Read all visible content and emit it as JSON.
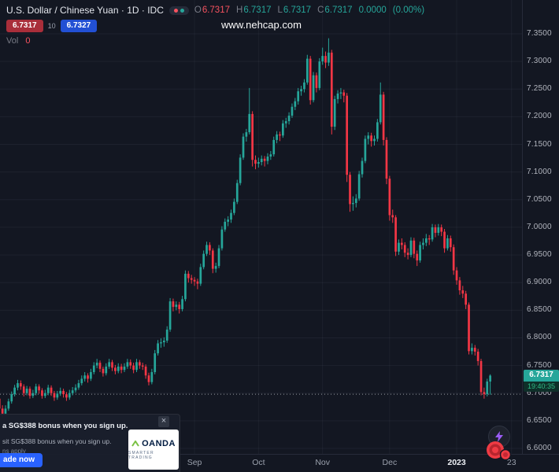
{
  "header": {
    "symbol_title": "U.S. Dollar / Chinese Yuan · 1D · IDC",
    "ohlc": {
      "o_label": "O",
      "o": "6.7317",
      "h_label": "H",
      "h": "6.7317",
      "l_label": "L",
      "l": "6.7317",
      "c_label": "C",
      "c": "6.7317",
      "change": "0.0000",
      "change_pct": "(0.00%)"
    },
    "bid": "6.7317",
    "spread": "10",
    "ask": "6.7327",
    "vol_label": "Vol",
    "vol_value": "0"
  },
  "watermark": "www.nehcap.com",
  "price_badge": {
    "price": "6.7317",
    "countdown": "19:40:35"
  },
  "ad": {
    "headline": "a SG$388 bonus when you sign up.",
    "subtext": "sit SG$388 bonus when you sign up.",
    "terms": "ns apply",
    "cta": "ade now",
    "close": "×",
    "logo": "OANDA",
    "logo_tagline": "SMARTER TRADING"
  },
  "colors": {
    "background": "#131722",
    "up_candle": "#26a69a",
    "down_candle": "#f23645",
    "sell_button": "#a92e3a",
    "buy_button": "#2250d4",
    "badge_green": "#26a69a",
    "ad_cta_blue": "#2962ff",
    "axis_text": "#b2b5be"
  },
  "chart_data": {
    "type": "candlestick",
    "symbol": "USDCNY",
    "timeframe": "1D",
    "title": "U.S. Dollar / Chinese Yuan",
    "ylim": [
      6.6,
      7.35
    ],
    "grid": true,
    "price_line": 6.698,
    "y_axis_labels": [
      "7.3500",
      "7.3000",
      "7.2500",
      "7.2000",
      "7.1500",
      "7.1000",
      "7.0500",
      "7.0000",
      "6.9500",
      "6.9000",
      "6.8500",
      "6.8000",
      "6.7500",
      "6.7000",
      "6.6500",
      "6.6000"
    ],
    "x_axis_labels": [
      {
        "label": "Sep",
        "index": 66
      },
      {
        "label": "Oct",
        "index": 87
      },
      {
        "label": "Nov",
        "index": 108
      },
      {
        "label": "Dec",
        "index": 130
      },
      {
        "label": "2023",
        "index": 152,
        "year": true
      },
      {
        "label": "23",
        "index": 170
      }
    ],
    "candles": [
      [
        6.705,
        6.712,
        6.695,
        6.7
      ],
      [
        6.7,
        6.705,
        6.684,
        6.69
      ],
      [
        6.69,
        6.694,
        6.666,
        6.672
      ],
      [
        6.672,
        6.678,
        6.656,
        6.663
      ],
      [
        6.663,
        6.678,
        6.659,
        6.672
      ],
      [
        6.672,
        6.69,
        6.668,
        6.685
      ],
      [
        6.685,
        6.703,
        6.681,
        6.698
      ],
      [
        6.698,
        6.715,
        6.694,
        6.71
      ],
      [
        6.71,
        6.724,
        6.705,
        6.718
      ],
      [
        6.718,
        6.723,
        6.706,
        6.712
      ],
      [
        6.712,
        6.716,
        6.694,
        6.7
      ],
      [
        6.7,
        6.713,
        6.696,
        6.708
      ],
      [
        6.708,
        6.712,
        6.69,
        6.695
      ],
      [
        6.695,
        6.706,
        6.691,
        6.7
      ],
      [
        6.7,
        6.717,
        6.696,
        6.712
      ],
      [
        6.712,
        6.716,
        6.699,
        6.705
      ],
      [
        6.705,
        6.709,
        6.69,
        6.695
      ],
      [
        6.695,
        6.706,
        6.691,
        6.7
      ],
      [
        6.7,
        6.715,
        6.696,
        6.71
      ],
      [
        6.71,
        6.714,
        6.695,
        6.7
      ],
      [
        6.7,
        6.704,
        6.686,
        6.692
      ],
      [
        6.692,
        6.704,
        6.688,
        6.699
      ],
      [
        6.699,
        6.71,
        6.695,
        6.704
      ],
      [
        6.704,
        6.708,
        6.692,
        6.698
      ],
      [
        6.698,
        6.702,
        6.686,
        6.692
      ],
      [
        6.692,
        6.706,
        6.688,
        6.7
      ],
      [
        6.7,
        6.711,
        6.696,
        6.705
      ],
      [
        6.705,
        6.716,
        6.701,
        6.71
      ],
      [
        6.71,
        6.724,
        6.706,
        6.718
      ],
      [
        6.718,
        6.732,
        6.714,
        6.726
      ],
      [
        6.726,
        6.738,
        6.721,
        6.732
      ],
      [
        6.732,
        6.736,
        6.719,
        6.726
      ],
      [
        6.726,
        6.744,
        6.722,
        6.738
      ],
      [
        6.738,
        6.756,
        6.734,
        6.75
      ],
      [
        6.75,
        6.762,
        6.745,
        6.755
      ],
      [
        6.755,
        6.759,
        6.738,
        6.744
      ],
      [
        6.744,
        6.748,
        6.73,
        6.736
      ],
      [
        6.736,
        6.754,
        6.732,
        6.748
      ],
      [
        6.748,
        6.762,
        6.744,
        6.756
      ],
      [
        6.756,
        6.76,
        6.74,
        6.746
      ],
      [
        6.746,
        6.751,
        6.734,
        6.74
      ],
      [
        6.74,
        6.754,
        6.736,
        6.748
      ],
      [
        6.748,
        6.753,
        6.736,
        6.742
      ],
      [
        6.742,
        6.754,
        6.738,
        6.748
      ],
      [
        6.748,
        6.762,
        6.744,
        6.756
      ],
      [
        6.756,
        6.761,
        6.744,
        6.75
      ],
      [
        6.75,
        6.755,
        6.736,
        6.742
      ],
      [
        6.742,
        6.762,
        6.738,
        6.756
      ],
      [
        6.756,
        6.76,
        6.744,
        6.75
      ],
      [
        6.75,
        6.755,
        6.742,
        6.748
      ],
      [
        6.748,
        6.752,
        6.726,
        6.732
      ],
      [
        6.732,
        6.737,
        6.714,
        6.72
      ],
      [
        6.72,
        6.744,
        6.716,
        6.738
      ],
      [
        6.738,
        6.778,
        6.734,
        6.772
      ],
      [
        6.772,
        6.796,
        6.768,
        6.79
      ],
      [
        6.79,
        6.799,
        6.782,
        6.792
      ],
      [
        6.792,
        6.801,
        6.784,
        6.795
      ],
      [
        6.795,
        6.821,
        6.791,
        6.815
      ],
      [
        6.815,
        6.872,
        6.811,
        6.866
      ],
      [
        6.866,
        6.871,
        6.848,
        6.856
      ],
      [
        6.856,
        6.866,
        6.85,
        6.86
      ],
      [
        6.86,
        6.865,
        6.844,
        6.852
      ],
      [
        6.852,
        6.876,
        6.848,
        6.87
      ],
      [
        6.87,
        6.922,
        6.866,
        6.916
      ],
      [
        6.916,
        6.921,
        6.9,
        6.908
      ],
      [
        6.908,
        6.914,
        6.898,
        6.905
      ],
      [
        6.905,
        6.91,
        6.894,
        6.902
      ],
      [
        6.902,
        6.907,
        6.888,
        6.898
      ],
      [
        6.898,
        6.934,
        6.894,
        6.928
      ],
      [
        6.928,
        6.958,
        6.924,
        6.952
      ],
      [
        6.952,
        6.974,
        6.948,
        6.968
      ],
      [
        6.968,
        6.973,
        6.95,
        6.958
      ],
      [
        6.958,
        6.962,
        6.917,
        6.925
      ],
      [
        6.925,
        6.936,
        6.918,
        6.93
      ],
      [
        6.93,
        6.968,
        6.926,
        6.962
      ],
      [
        6.962,
        7.002,
        6.958,
        6.996
      ],
      [
        6.996,
        7.016,
        6.992,
        7.01
      ],
      [
        7.01,
        7.02,
        7.002,
        7.014
      ],
      [
        7.014,
        7.032,
        7.008,
        7.026
      ],
      [
        7.026,
        7.052,
        7.022,
        7.046
      ],
      [
        7.046,
        7.086,
        7.042,
        7.08
      ],
      [
        7.08,
        7.132,
        7.076,
        7.126
      ],
      [
        7.126,
        7.17,
        7.122,
        7.164
      ],
      [
        7.164,
        7.178,
        7.155,
        7.172
      ],
      [
        7.172,
        7.252,
        7.168,
        7.205
      ],
      [
        7.205,
        7.21,
        7.11,
        7.122
      ],
      [
        7.122,
        7.13,
        7.105,
        7.115
      ],
      [
        7.115,
        7.126,
        7.108,
        7.118
      ],
      [
        7.118,
        7.13,
        7.112,
        7.124
      ],
      [
        7.124,
        7.129,
        7.11,
        7.12
      ],
      [
        7.12,
        7.134,
        7.114,
        7.128
      ],
      [
        7.128,
        7.138,
        7.122,
        7.132
      ],
      [
        7.132,
        7.164,
        7.128,
        7.158
      ],
      [
        7.158,
        7.174,
        7.152,
        7.168
      ],
      [
        7.168,
        7.173,
        7.156,
        7.166
      ],
      [
        7.166,
        7.194,
        7.162,
        7.188
      ],
      [
        7.188,
        7.198,
        7.18,
        7.192
      ],
      [
        7.192,
        7.208,
        7.186,
        7.202
      ],
      [
        7.202,
        7.224,
        7.198,
        7.218
      ],
      [
        7.218,
        7.234,
        7.212,
        7.228
      ],
      [
        7.228,
        7.252,
        7.222,
        7.246
      ],
      [
        7.246,
        7.256,
        7.238,
        7.25
      ],
      [
        7.25,
        7.268,
        7.244,
        7.262
      ],
      [
        7.262,
        7.312,
        7.258,
        7.305
      ],
      [
        7.305,
        7.31,
        7.222,
        7.23
      ],
      [
        7.23,
        7.281,
        7.226,
        7.275
      ],
      [
        7.275,
        7.28,
        7.244,
        7.252
      ],
      [
        7.252,
        7.306,
        7.248,
        7.3
      ],
      [
        7.3,
        7.325,
        7.294,
        7.31
      ],
      [
        7.31,
        7.318,
        7.288,
        7.298
      ],
      [
        7.298,
        7.342,
        7.292,
        7.316
      ],
      [
        7.316,
        7.321,
        7.168,
        7.182
      ],
      [
        7.182,
        7.238,
        7.176,
        7.232
      ],
      [
        7.232,
        7.248,
        7.224,
        7.242
      ],
      [
        7.242,
        7.252,
        7.232,
        7.244
      ],
      [
        7.244,
        7.249,
        7.226,
        7.238
      ],
      [
        7.238,
        7.243,
        7.082,
        7.095
      ],
      [
        7.095,
        7.1,
        7.028,
        7.042
      ],
      [
        7.042,
        7.056,
        7.03,
        7.044
      ],
      [
        7.044,
        7.06,
        7.036,
        7.052
      ],
      [
        7.052,
        7.102,
        7.048,
        7.096
      ],
      [
        7.096,
        7.126,
        7.09,
        7.12
      ],
      [
        7.12,
        7.166,
        7.116,
        7.16
      ],
      [
        7.16,
        7.172,
        7.15,
        7.166
      ],
      [
        7.166,
        7.171,
        7.146,
        7.156
      ],
      [
        7.156,
        7.166,
        7.148,
        7.16
      ],
      [
        7.16,
        7.196,
        7.155,
        7.19
      ],
      [
        7.19,
        7.262,
        7.186,
        7.24
      ],
      [
        7.24,
        7.245,
        7.148,
        7.158
      ],
      [
        7.158,
        7.163,
        7.078,
        7.088
      ],
      [
        7.088,
        7.093,
        7.012,
        7.022
      ],
      [
        7.022,
        7.032,
        7.008,
        7.018
      ],
      [
        7.018,
        7.022,
        6.948,
        6.956
      ],
      [
        6.956,
        6.978,
        6.95,
        6.972
      ],
      [
        6.972,
        6.98,
        6.96,
        6.968
      ],
      [
        6.968,
        6.973,
        6.946,
        6.954
      ],
      [
        6.954,
        6.962,
        6.942,
        6.95
      ],
      [
        6.95,
        6.982,
        6.946,
        6.976
      ],
      [
        6.976,
        6.981,
        6.944,
        6.952
      ],
      [
        6.952,
        6.958,
        6.93,
        6.94
      ],
      [
        6.94,
        6.974,
        6.936,
        6.968
      ],
      [
        6.968,
        6.98,
        6.96,
        6.972
      ],
      [
        6.972,
        6.988,
        6.966,
        6.98
      ],
      [
        6.98,
        6.986,
        6.968,
        6.978
      ],
      [
        6.978,
        7.006,
        6.974,
        7.0
      ],
      [
        7.0,
        7.005,
        6.982,
        6.99
      ],
      [
        6.99,
        7.006,
        6.985,
        7.0
      ],
      [
        7.0,
        7.005,
        6.984,
        6.992
      ],
      [
        6.992,
        6.997,
        6.954,
        6.962
      ],
      [
        6.962,
        6.986,
        6.958,
        6.98
      ],
      [
        6.98,
        6.985,
        6.956,
        6.964
      ],
      [
        6.964,
        6.969,
        6.914,
        6.922
      ],
      [
        6.922,
        6.928,
        6.896,
        6.904
      ],
      [
        6.904,
        6.91,
        6.878,
        6.886
      ],
      [
        6.886,
        6.894,
        6.872,
        6.88
      ],
      [
        6.88,
        6.885,
        6.852,
        6.86
      ],
      [
        6.86,
        6.864,
        6.77,
        6.776
      ],
      [
        6.776,
        6.79,
        6.77,
        6.782
      ],
      [
        6.782,
        6.787,
        6.768,
        6.775
      ],
      [
        6.775,
        6.78,
        6.75,
        6.758
      ],
      [
        6.758,
        6.762,
        6.696,
        6.702
      ],
      [
        6.702,
        6.71,
        6.69,
        6.698
      ],
      [
        6.698,
        6.726,
        6.694,
        6.721
      ],
      [
        6.721,
        6.734,
        6.697,
        6.7317
      ]
    ]
  }
}
